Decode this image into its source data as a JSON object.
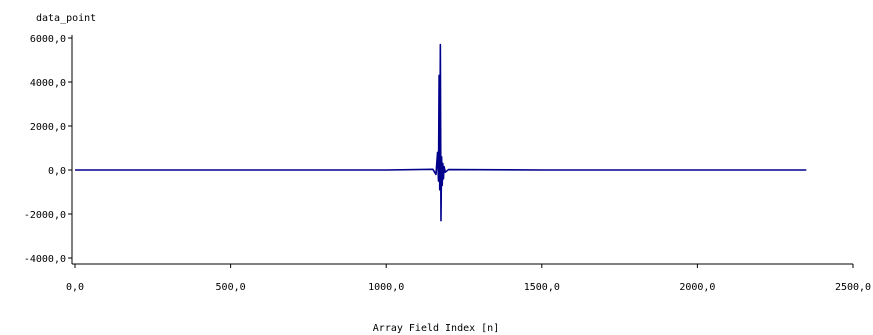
{
  "chart_data": {
    "type": "line",
    "title": "",
    "ylabel": "data_point",
    "xlabel": "Array Field Index [n]",
    "xlim": [
      0,
      2500
    ],
    "ylim": [
      -4000,
      6000
    ],
    "x_ticks": [
      0,
      500,
      1000,
      1500,
      2000,
      2500
    ],
    "x_tick_labels": [
      "0,0",
      "500,0",
      "1000,0",
      "1500,0",
      "2000,0",
      "2500,0"
    ],
    "y_ticks": [
      -4000,
      -2000,
      0,
      2000,
      4000,
      6000
    ],
    "y_tick_labels": [
      "-4000,0",
      "-2000,0",
      "0,0",
      "2000,0",
      "4000,0",
      "6000,0"
    ],
    "grid": false,
    "series": [
      {
        "color": "#00008b",
        "x": [
          0,
          500,
          1000,
          1150,
          1160,
          1165,
          1168,
          1170,
          1172,
          1174,
          1176,
          1178,
          1180,
          1182,
          1184,
          1186,
          1190,
          1200,
          1500,
          2000,
          2350
        ],
        "y": [
          0,
          0,
          0,
          30,
          -200,
          800,
          -500,
          4300,
          -900,
          5700,
          -2300,
          600,
          -700,
          300,
          -400,
          150,
          -100,
          20,
          0,
          0,
          0
        ]
      }
    ]
  }
}
